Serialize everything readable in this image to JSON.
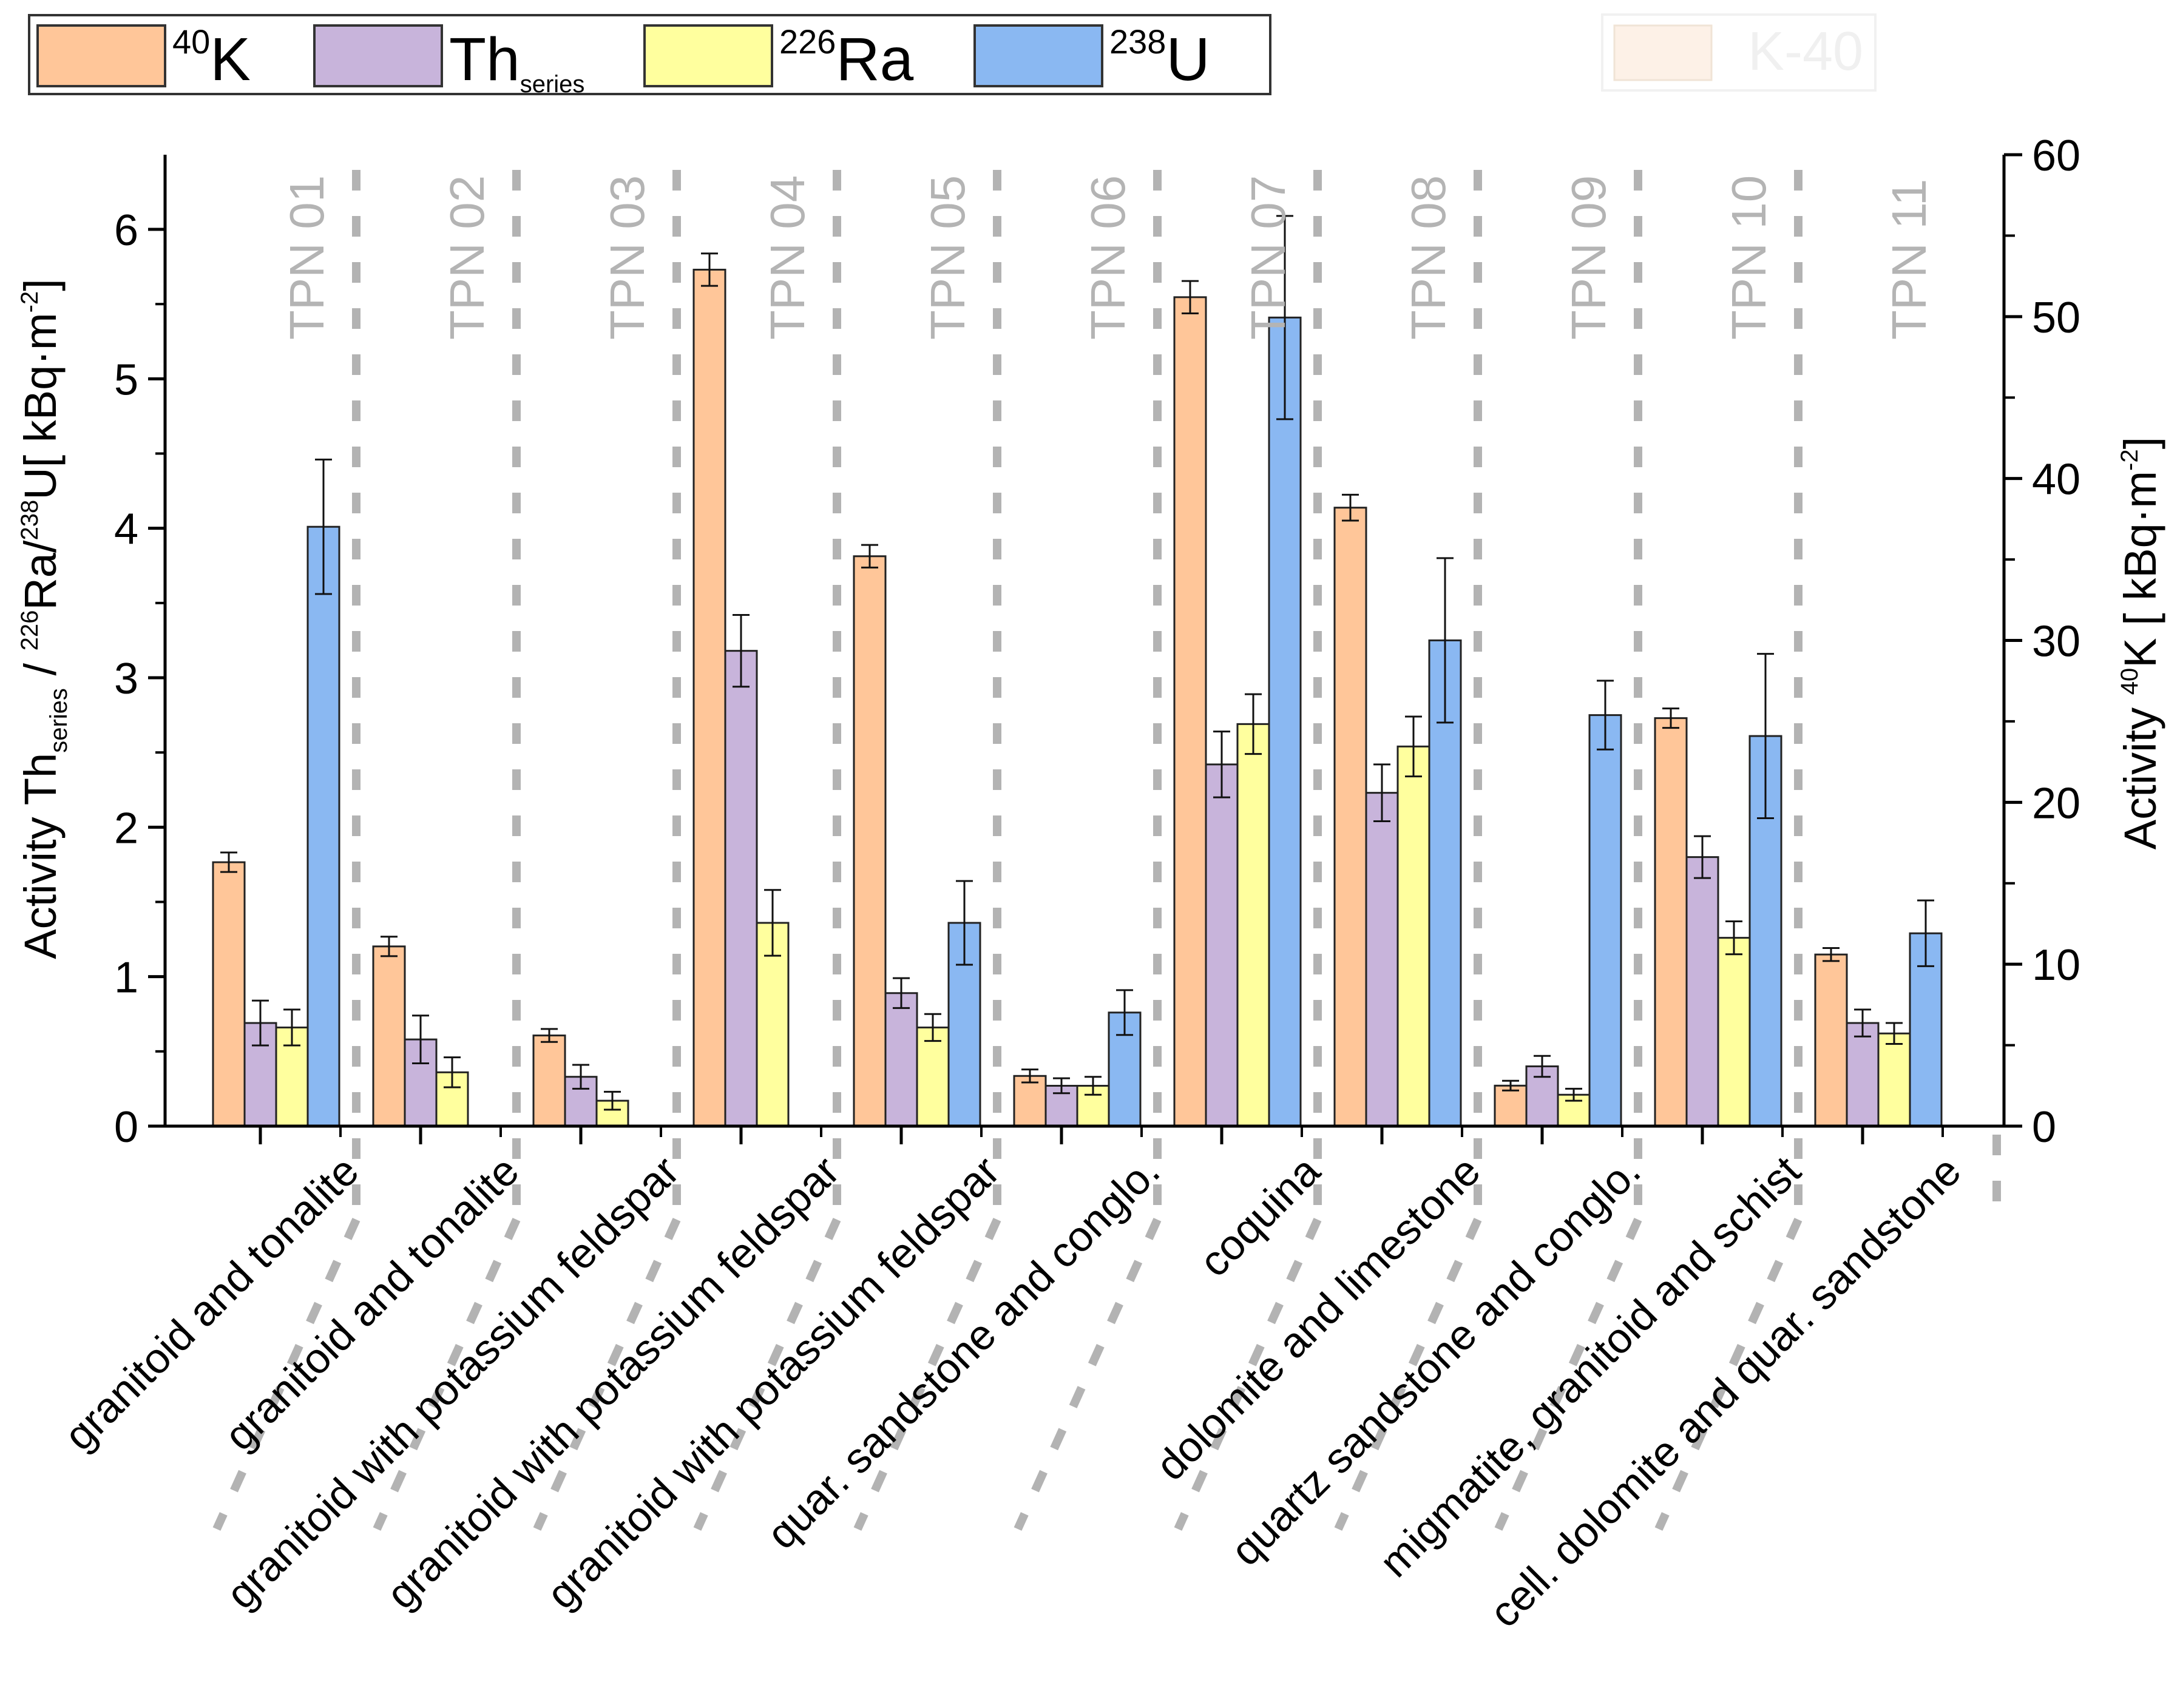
{
  "chart_data": {
    "type": "bar",
    "categories": [
      "TPN 01",
      "TPN 02",
      "TPN 03",
      "TPN 04",
      "TPN 05",
      "TPN 06",
      "TPN 07",
      "TPN 08",
      "TPN 09",
      "TPN 10",
      "TPN 11"
    ],
    "rock_types": [
      "granitoid and tonalite",
      "granitoid and tonalite",
      "granitoid with potassium feldspar",
      "granitoid with potassium feldspar",
      "granitoid with potassium feldspar",
      "quar. sandstone and conglo.",
      "coquina",
      "dolomite and limestone",
      "quartz sandstone and conglo.",
      "migmatite, granitoid and schist",
      "cell. dolomite and quar. sandstone"
    ],
    "series": [
      {
        "key": "k40",
        "name_sup": "40",
        "name_main": "K",
        "name_sub": "",
        "color": "#FFC699",
        "axis": "right",
        "values": [
          16.3,
          11.1,
          5.6,
          52.9,
          35.2,
          3.1,
          51.2,
          38.2,
          2.5,
          25.2,
          10.6
        ],
        "errors": [
          0.6,
          0.6,
          0.4,
          1.0,
          0.7,
          0.4,
          1.0,
          0.8,
          0.3,
          0.6,
          0.4
        ]
      },
      {
        "key": "th",
        "name_sup": "",
        "name_main": "Th",
        "name_sub": "series",
        "color": "#C8B4DB",
        "axis": "left",
        "values": [
          0.69,
          0.58,
          0.33,
          3.18,
          0.89,
          0.27,
          2.42,
          2.23,
          0.4,
          1.8,
          0.69
        ],
        "errors": [
          0.15,
          0.16,
          0.08,
          0.24,
          0.1,
          0.05,
          0.22,
          0.19,
          0.07,
          0.14,
          0.09
        ]
      },
      {
        "key": "ra",
        "name_sup": "226",
        "name_main": "Ra",
        "name_sub": "",
        "color": "#FFFF9E",
        "axis": "left",
        "values": [
          0.66,
          0.36,
          0.17,
          1.36,
          0.66,
          0.27,
          2.69,
          2.54,
          0.21,
          1.26,
          0.62
        ],
        "errors": [
          0.12,
          0.1,
          0.06,
          0.22,
          0.09,
          0.06,
          0.2,
          0.2,
          0.04,
          0.11,
          0.07
        ]
      },
      {
        "key": "u",
        "name_sup": "238",
        "name_main": "U",
        "name_sub": "",
        "color": "#8AB8F2",
        "axis": "left",
        "values": [
          4.01,
          0.0,
          0.0,
          0.0,
          1.36,
          0.76,
          5.41,
          3.25,
          2.75,
          2.61,
          1.29
        ],
        "errors": [
          0.45,
          0,
          0,
          0,
          0.28,
          0.15,
          0.68,
          0.55,
          0.23,
          0.55,
          0.22
        ]
      }
    ],
    "left_axis": {
      "label_pre": "Activity Th",
      "label_sub": "series",
      "label_mid1": " / ",
      "label_sup1": "226",
      "label_mid2": "Ra/",
      "label_sup2": "238",
      "label_mid3": "U[ kBq·m",
      "label_sup3": "-2",
      "label_end": "]",
      "ylim": [
        0,
        6.5
      ],
      "ticks": [
        "0",
        "1",
        "2",
        "3",
        "4",
        "5",
        "6"
      ]
    },
    "right_axis": {
      "label_pre": "Activity  ",
      "label_sup": "40",
      "label_mid": "K [ kBq·m",
      "label_sup2": "-2",
      "label_end": "]",
      "ylim": [
        0,
        60
      ],
      "ticks": [
        "0",
        "10",
        "20",
        "30",
        "40",
        "50",
        "60"
      ]
    },
    "legend_ghost": "K-40"
  }
}
